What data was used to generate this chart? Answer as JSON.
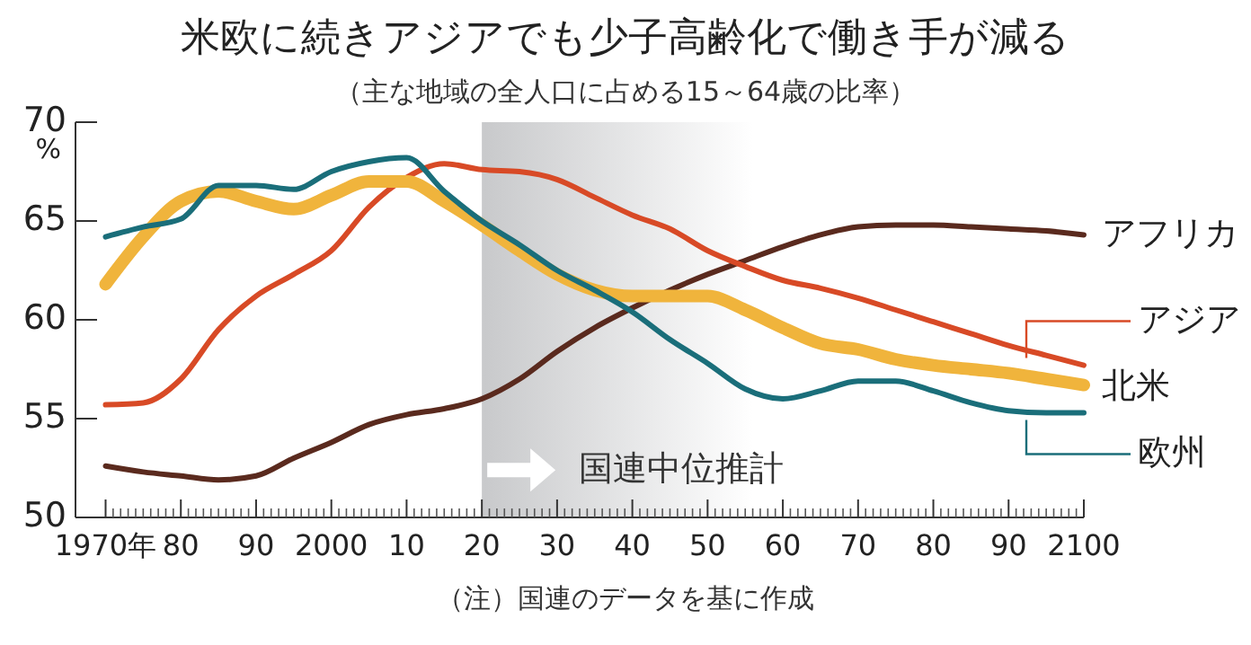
{
  "chart_data": {
    "type": "line",
    "title": "米欧に続きアジアでも少子高齢化で働き手が減る",
    "subtitle": "（主な地域の全人口に占める15～64歳の比率）",
    "ylabel": "%",
    "x": [
      1970,
      1975,
      1980,
      1985,
      1990,
      1995,
      2000,
      2005,
      2010,
      2015,
      2020,
      2025,
      2030,
      2035,
      2040,
      2045,
      2050,
      2055,
      2060,
      2065,
      2070,
      2075,
      2080,
      2085,
      2090,
      2095,
      2100
    ],
    "series": [
      {
        "name": "アフリカ",
        "color": "#5a2a1e",
        "values": [
          52.6,
          52.3,
          52.1,
          51.9,
          52.1,
          53.0,
          53.8,
          54.7,
          55.2,
          55.5,
          56.0,
          57.0,
          58.4,
          59.6,
          60.6,
          61.5,
          62.3,
          63.0,
          63.7,
          64.3,
          64.7,
          64.8,
          64.8,
          64.7,
          64.6,
          64.5,
          64.3
        ]
      },
      {
        "name": "アジア",
        "color": "#d84a26",
        "values": [
          55.7,
          55.8,
          57.0,
          59.5,
          61.2,
          62.3,
          63.5,
          65.7,
          67.2,
          67.9,
          67.6,
          67.5,
          67.1,
          66.2,
          65.3,
          64.6,
          63.5,
          62.7,
          62.0,
          61.6,
          61.1,
          60.5,
          59.9,
          59.3,
          58.7,
          58.2,
          57.7
        ]
      },
      {
        "name": "北米",
        "color": "#f0b43c",
        "values": [
          61.8,
          64.2,
          66.0,
          66.5,
          66.0,
          65.6,
          66.3,
          67.0,
          67.0,
          66.0,
          64.8,
          63.5,
          62.3,
          61.5,
          61.2,
          61.2,
          61.2,
          60.5,
          59.6,
          58.8,
          58.5,
          58.0,
          57.7,
          57.5,
          57.3,
          57.0,
          56.7
        ]
      },
      {
        "name": "欧州",
        "color": "#1a6e7a",
        "values": [
          64.2,
          64.7,
          65.1,
          66.8,
          66.8,
          66.6,
          67.5,
          68.0,
          68.2,
          66.5,
          65.0,
          63.8,
          62.5,
          61.5,
          60.4,
          59.0,
          57.8,
          56.5,
          56.0,
          56.4,
          56.9,
          56.9,
          56.4,
          55.8,
          55.4,
          55.3,
          55.3
        ]
      }
    ],
    "xlim": [
      1966,
      2100
    ],
    "ylim": [
      50,
      70
    ],
    "xticks": [
      {
        "value": 1970,
        "label": "1970年"
      },
      {
        "value": 1980,
        "label": "80"
      },
      {
        "value": 1990,
        "label": "90"
      },
      2000,
      {
        "value": 2010,
        "label": "10"
      },
      {
        "value": 2020,
        "label": "20"
      },
      {
        "value": 2030,
        "label": "30"
      },
      {
        "value": 2040,
        "label": "40"
      },
      {
        "value": 2050,
        "label": "50"
      },
      {
        "value": 2060,
        "label": "60"
      },
      {
        "value": 2070,
        "label": "70"
      },
      {
        "value": 2080,
        "label": "80"
      },
      {
        "value": 2090,
        "label": "90"
      },
      2100
    ],
    "yticks": [
      50,
      55,
      60,
      65,
      70
    ],
    "bands": [
      {
        "axis": "x",
        "from": 2020,
        "to": 2100,
        "label": "国連中位推計",
        "color": "#c8c9cb"
      }
    ],
    "annotations": [
      "（注）国連のデータを基に作成"
    ],
    "grid": false,
    "legend": "right"
  }
}
